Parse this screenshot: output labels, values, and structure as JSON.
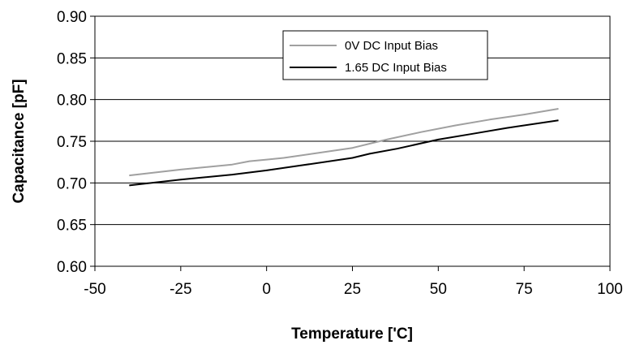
{
  "chart_data": {
    "type": "line",
    "title": "",
    "xlabel": "Temperature ['C]",
    "ylabel": "Capacitance [pF]",
    "xlim": [
      -50,
      100
    ],
    "ylim": [
      0.6,
      0.9
    ],
    "x_ticks": [
      -50,
      -25,
      0,
      25,
      50,
      75,
      100
    ],
    "x_tick_labels": [
      "-50",
      "-25",
      "0",
      "25",
      "50",
      "75",
      "100"
    ],
    "y_ticks": [
      0.6,
      0.65,
      0.7,
      0.75,
      0.8,
      0.85,
      0.9
    ],
    "y_tick_labels": [
      "0.60",
      "0.65",
      "0.70",
      "0.75",
      "0.80",
      "0.85",
      "0.90"
    ],
    "grid": "horizontal",
    "legend_position": "top-right",
    "series": [
      {
        "name": "0V DC Input Bias",
        "color": "#a0a0a0",
        "x": [
          -40,
          -25,
          -10,
          -5,
          0,
          5,
          15,
          25,
          35,
          45,
          55,
          65,
          75,
          85
        ],
        "y": [
          0.709,
          0.716,
          0.722,
          0.726,
          0.728,
          0.73,
          0.736,
          0.742,
          0.752,
          0.761,
          0.769,
          0.776,
          0.782,
          0.789
        ]
      },
      {
        "name": "1.65 DC Input Bias",
        "color": "#000000",
        "x": [
          -40,
          -25,
          -10,
          0,
          10,
          25,
          30,
          38,
          50,
          60,
          70,
          85
        ],
        "y": [
          0.697,
          0.704,
          0.71,
          0.715,
          0.721,
          0.73,
          0.735,
          0.741,
          0.752,
          0.759,
          0.766,
          0.775
        ]
      }
    ]
  }
}
